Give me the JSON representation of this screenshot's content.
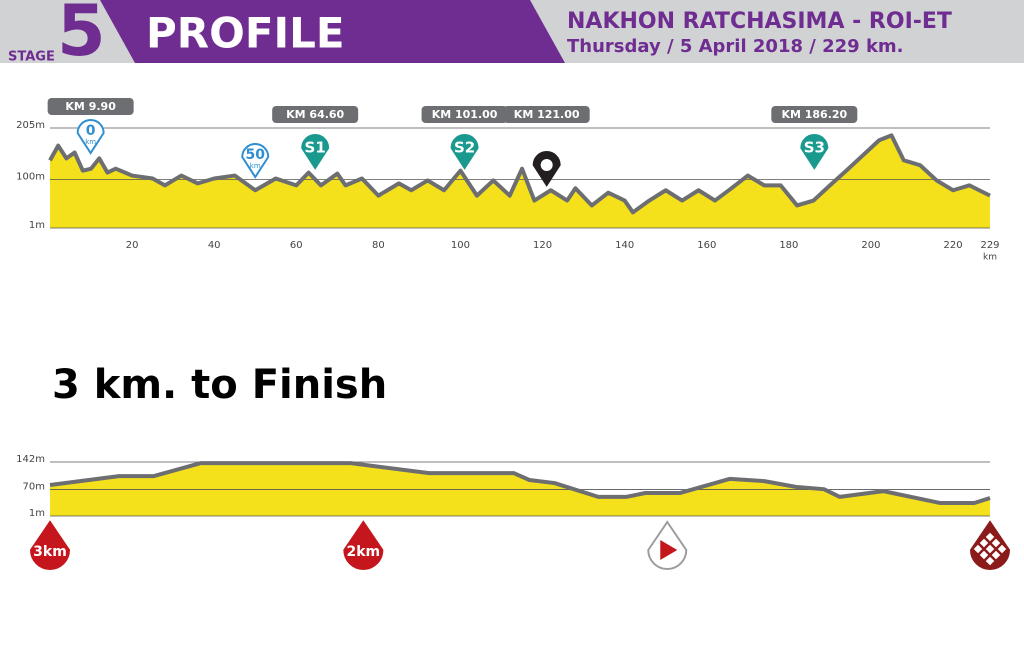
{
  "header": {
    "stage_label": "STAGE",
    "stage_number": "5",
    "title": "PROFILE",
    "route": "NAKHON RATCHASIMA - ROI-ET",
    "details": "Thursday / 5 April 2018 / 229 km."
  },
  "chart_data": [
    {
      "type": "area",
      "color": "#f4e01b",
      "line_color": "#6d6e71",
      "x": [
        0,
        2,
        4,
        6,
        8,
        10,
        12,
        14,
        16,
        20,
        25,
        28,
        32,
        36,
        40,
        45,
        50,
        55,
        60,
        63,
        66,
        70,
        72,
        76,
        80,
        85,
        88,
        92,
        96,
        100,
        104,
        108,
        112,
        115,
        118,
        122,
        126,
        128,
        132,
        136,
        140,
        142,
        146,
        150,
        154,
        158,
        162,
        166,
        170,
        174,
        178,
        182,
        186,
        190,
        194,
        198,
        202,
        205,
        208,
        212,
        216,
        220,
        224,
        229
      ],
      "values": [
        139,
        169,
        143,
        155,
        118,
        122,
        143,
        114,
        122,
        108,
        102,
        88,
        108,
        92,
        102,
        108,
        78,
        102,
        88,
        114,
        88,
        112,
        88,
        102,
        67,
        92,
        78,
        98,
        78,
        118,
        67,
        98,
        67,
        122,
        57,
        78,
        57,
        82,
        47,
        73,
        57,
        33,
        57,
        78,
        57,
        78,
        57,
        82,
        108,
        88,
        88,
        47,
        57,
        88,
        118,
        149,
        180,
        190,
        139,
        129,
        98,
        78,
        88,
        67
      ],
      "xlim": [
        0,
        229
      ],
      "xticks": [
        20,
        40,
        60,
        80,
        100,
        120,
        140,
        160,
        180,
        200,
        220,
        229
      ],
      "xlabel": "km",
      "ylim": [
        1,
        205
      ],
      "yticks": [
        {
          "value": 1,
          "label": "1m"
        },
        {
          "value": 100,
          "label": "100m"
        },
        {
          "value": 205,
          "label": "205m"
        }
      ],
      "grid": true,
      "annotations": [
        {
          "x": 9.9,
          "label": "KM 9.90",
          "badge": "0",
          "unit": "km",
          "color": "#2f8fd0"
        },
        {
          "x": 50,
          "badge": "50",
          "unit": "km",
          "color": "#2f8fd0"
        },
        {
          "x": 64.6,
          "label": "KM 64.60",
          "badge": "S1",
          "color": "#1a9a8f"
        },
        {
          "x": 101,
          "label": "KM 101.00",
          "badge": "S2",
          "color": "#1a9a8f"
        },
        {
          "x": 121,
          "label": "KM 121.00",
          "color": "#231f20"
        },
        {
          "x": 186.2,
          "label": "KM 186.20",
          "badge": "S3",
          "color": "#1a9a8f"
        }
      ]
    },
    {
      "type": "area",
      "title": "3 km. to Finish",
      "color": "#f4e01b",
      "line_color": "#6d6e71",
      "x": [
        0,
        0.22,
        0.33,
        0.48,
        0.96,
        1.21,
        1.48,
        1.53,
        1.61,
        1.75,
        1.84,
        1.9,
        2.01,
        2.17,
        2.28,
        2.38,
        2.47,
        2.52,
        2.66,
        2.84,
        2.95,
        3
      ],
      "values": [
        82,
        105,
        105,
        139,
        139,
        113,
        113,
        95,
        87,
        51,
        51,
        61,
        61,
        98,
        92,
        77,
        71,
        51,
        66,
        35,
        35,
        48
      ],
      "xlim": [
        0,
        3
      ],
      "ylim": [
        1,
        142
      ],
      "yticks": [
        {
          "value": 1,
          "label": "1m"
        },
        {
          "value": 70,
          "label": "70m"
        },
        {
          "value": 142,
          "label": "142m"
        }
      ],
      "grid": true,
      "markers": [
        {
          "x": 0,
          "label": "3km",
          "color": "#c4161c"
        },
        {
          "x": 1,
          "label": "2km",
          "color": "#c4161c"
        },
        {
          "x": 1.97,
          "color": "#c4161c"
        },
        {
          "x": 3,
          "color": "#8b1a1a"
        }
      ]
    }
  ]
}
